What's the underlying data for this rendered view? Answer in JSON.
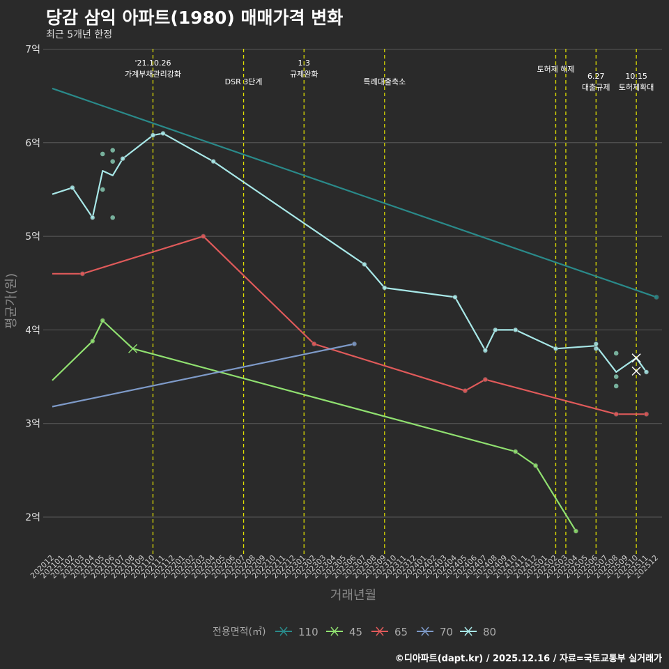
{
  "header": {
    "title": "당감 삼익 아파트(1980) 매매가격 변화",
    "subtitle": "최근 5개년 한정"
  },
  "caption": "©디아파트(dapt.kr) / 2025.12.16 / 자료=국토교통부 실거래가",
  "colors": {
    "background": "#2a2a2a",
    "grid": "#5a5a5a",
    "event_line": "#e0e000",
    "s110": "#2a8a8a",
    "s45": "#90e070",
    "s65": "#e05a5a",
    "s70": "#7e9ac8",
    "s80": "#a8e8e8"
  },
  "chart_data": {
    "type": "line",
    "title": "당감 삼익 아파트(1980) 매매가격 변화",
    "subtitle": "최근 5개년 한정",
    "xlabel": "거래년월",
    "ylabel": "평균가(원)",
    "ylim": [
      1.6,
      7.0
    ],
    "y_ticks": [
      {
        "value": 2,
        "label": "2억"
      },
      {
        "value": 3,
        "label": "3억"
      },
      {
        "value": 4,
        "label": "4억"
      },
      {
        "value": 5,
        "label": "5억"
      },
      {
        "value": 6,
        "label": "6억"
      },
      {
        "value": 7,
        "label": "7억"
      }
    ],
    "x_categories": [
      "202012",
      "202101",
      "202102",
      "202103",
      "202104",
      "202105",
      "202106",
      "202107",
      "202108",
      "202109",
      "202110",
      "202111",
      "202112",
      "202201",
      "202202",
      "202203",
      "202204",
      "202205",
      "202206",
      "202207",
      "202208",
      "202209",
      "202210",
      "202211",
      "202212",
      "202301",
      "202302",
      "202303",
      "202304",
      "202305",
      "202306",
      "202307",
      "202308",
      "202309",
      "202310",
      "202311",
      "202312",
      "202401",
      "202402",
      "202403",
      "202404",
      "202405",
      "202406",
      "202407",
      "202408",
      "202409",
      "202410",
      "202411",
      "202412",
      "202501",
      "202502",
      "202503",
      "202504",
      "202505",
      "202506",
      "202507",
      "202508",
      "202509",
      "202510",
      "202511",
      "202512"
    ],
    "legend": {
      "title": "전용면적(㎡)",
      "position": "bottom",
      "items": [
        "110",
        "45",
        "65",
        "70",
        "80"
      ]
    },
    "events": [
      {
        "x": 10,
        "label": "'21.10.26\n가계부채관리강화",
        "row": 0
      },
      {
        "x": 19,
        "label": "DSR 3단계",
        "row": 1
      },
      {
        "x": 25,
        "label": "1.3\n규제완화",
        "row": 0
      },
      {
        "x": 33,
        "label": "특례대출축소",
        "row": 1
      },
      {
        "x": 50,
        "label": "토허제 해제",
        "row": 0
      },
      {
        "x": 51,
        "label": "",
        "row": 0
      },
      {
        "x": 54,
        "label": "6.27\n대출규제",
        "row": 1
      },
      {
        "x": 58,
        "label": "10.15\n토허제확대",
        "row": 1
      }
    ],
    "series": [
      {
        "name": "110",
        "color": "#2a8a8a",
        "marker": "none",
        "line": [
          [
            0,
            6.58
          ],
          [
            60,
            4.35
          ]
        ],
        "points": [
          [
            60,
            4.35
          ]
        ]
      },
      {
        "name": "45",
        "color": "#90e070",
        "marker": "x",
        "line": [
          [
            0,
            3.46
          ],
          [
            4,
            3.88
          ],
          [
            5,
            4.1
          ],
          [
            8,
            3.8
          ],
          [
            46,
            2.7
          ],
          [
            48,
            2.55
          ],
          [
            52,
            1.85
          ]
        ],
        "points": [
          [
            4,
            3.88
          ],
          [
            5,
            4.1
          ],
          [
            46,
            2.7
          ],
          [
            48,
            2.55
          ],
          [
            52,
            1.85
          ]
        ],
        "crosses": [
          [
            8,
            3.8
          ]
        ]
      },
      {
        "name": "65",
        "color": "#e05a5a",
        "marker": "none",
        "line": [
          [
            0,
            4.6
          ],
          [
            3,
            4.6
          ],
          [
            15,
            5.0
          ],
          [
            26,
            3.85
          ],
          [
            41,
            3.35
          ],
          [
            43,
            3.47
          ],
          [
            56,
            3.1
          ],
          [
            59,
            3.1
          ]
        ],
        "points": [
          [
            3,
            4.6
          ],
          [
            15,
            5.0
          ],
          [
            26,
            3.85
          ],
          [
            41,
            3.35
          ],
          [
            43,
            3.47
          ],
          [
            56,
            3.1
          ],
          [
            59,
            3.1
          ]
        ]
      },
      {
        "name": "70",
        "color": "#7e9ac8",
        "marker": "none",
        "line": [
          [
            0,
            3.18
          ],
          [
            30,
            3.85
          ]
        ],
        "points": [
          [
            30,
            3.85
          ]
        ]
      },
      {
        "name": "80",
        "color": "#a8e8e8",
        "marker": "x",
        "line": [
          [
            0,
            5.45
          ],
          [
            2,
            5.52
          ],
          [
            4,
            5.2
          ],
          [
            5,
            5.7
          ],
          [
            6,
            5.65
          ],
          [
            7,
            5.83
          ],
          [
            10,
            6.08
          ],
          [
            11,
            6.1
          ],
          [
            16,
            5.8
          ],
          [
            31,
            4.7
          ],
          [
            33,
            4.45
          ],
          [
            40,
            4.35
          ],
          [
            43,
            3.78
          ],
          [
            44,
            4.0
          ],
          [
            46,
            4.0
          ],
          [
            50,
            3.8
          ],
          [
            54,
            3.83
          ],
          [
            56,
            3.55
          ],
          [
            58,
            3.7
          ],
          [
            59,
            3.55
          ]
        ],
        "points": [
          [
            2,
            5.52
          ],
          [
            4,
            5.2
          ],
          [
            7,
            5.83
          ],
          [
            10,
            6.08
          ],
          [
            11,
            6.1
          ],
          [
            16,
            5.8
          ],
          [
            31,
            4.7
          ],
          [
            33,
            4.45
          ],
          [
            40,
            4.35
          ],
          [
            43,
            3.78
          ],
          [
            44,
            4.0
          ],
          [
            46,
            4.0
          ],
          [
            50,
            3.8
          ],
          [
            54,
            3.85
          ],
          [
            54,
            3.8
          ],
          [
            59,
            3.55
          ]
        ],
        "scatter": [
          [
            5,
            5.88
          ],
          [
            6,
            5.92
          ],
          [
            6,
            5.8
          ],
          [
            5,
            5.5
          ],
          [
            6,
            5.2
          ],
          [
            56,
            3.75
          ],
          [
            56,
            3.5
          ],
          [
            56,
            3.4
          ]
        ],
        "crosses": [
          [
            58,
            3.7
          ],
          [
            58,
            3.56
          ]
        ]
      }
    ]
  }
}
